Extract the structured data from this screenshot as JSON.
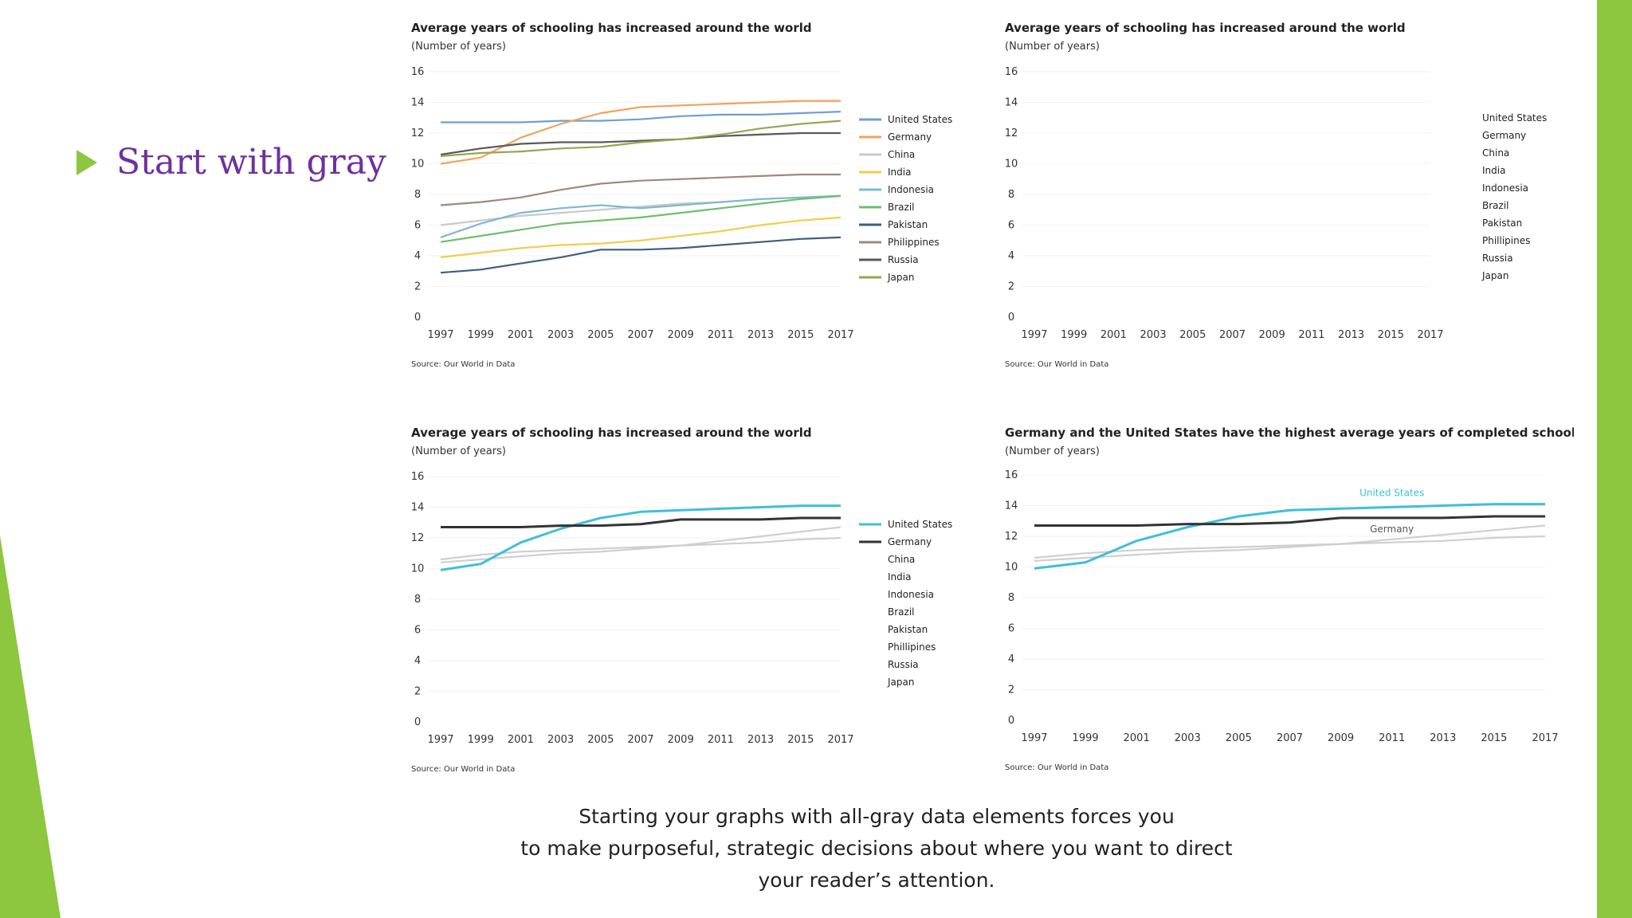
{
  "slide": {
    "bullet": "Start with gray",
    "caption_lines": [
      "Starting your graphs with all-gray data elements forces you",
      "to make purposeful, strategic decisions about where you want to direct",
      "your reader’s attention."
    ]
  },
  "colors": {
    "accent_green": "#8dc63f",
    "bullet_text": "#7030a0",
    "gray_series": "#cfcfcf",
    "highlight_us": "#3fbfd9",
    "highlight_germany": "#333333"
  },
  "chart_data": [
    {
      "type": "line",
      "title": "Average years of schooling has increased around the world",
      "subtitle": "(Number of years)",
      "source": "Source: Our World in Data",
      "x": [
        "1997",
        "1999",
        "2001",
        "2003",
        "2005",
        "2007",
        "2009",
        "2011",
        "2013",
        "2015",
        "2017"
      ],
      "yticks": [
        "0",
        "2",
        "4",
        "6",
        "8",
        "10",
        "12",
        "14",
        "16"
      ],
      "ylim": [
        0,
        16
      ],
      "legend_position": "right",
      "series": [
        {
          "name": "United States",
          "color": "#6f9fce",
          "values": [
            12.7,
            12.7,
            12.7,
            12.8,
            12.8,
            12.9,
            13.1,
            13.2,
            13.2,
            13.3,
            13.4
          ]
        },
        {
          "name": "Germany",
          "color": "#f0a35e",
          "values": [
            10.0,
            10.4,
            11.7,
            12.6,
            13.3,
            13.7,
            13.8,
            13.9,
            14.0,
            14.1,
            14.1
          ]
        },
        {
          "name": "China",
          "color": "#c9c9c9",
          "values": [
            6.0,
            6.3,
            6.6,
            6.8,
            7.0,
            7.2,
            7.4,
            7.5,
            7.7,
            7.8,
            7.9
          ]
        },
        {
          "name": "India",
          "color": "#f2cd4c",
          "values": [
            3.9,
            4.2,
            4.5,
            4.7,
            4.8,
            5.0,
            5.3,
            5.6,
            6.0,
            6.3,
            6.5
          ]
        },
        {
          "name": "Indonesia",
          "color": "#7fb8d1",
          "values": [
            5.2,
            6.1,
            6.8,
            7.1,
            7.3,
            7.1,
            7.3,
            7.5,
            7.7,
            7.8,
            7.9
          ]
        },
        {
          "name": "Brazil",
          "color": "#6cbf6c",
          "values": [
            4.9,
            5.3,
            5.7,
            6.1,
            6.3,
            6.5,
            6.8,
            7.1,
            7.4,
            7.7,
            7.9
          ]
        },
        {
          "name": "Pakistan",
          "color": "#3f5f7f",
          "values": [
            2.9,
            3.1,
            3.5,
            3.9,
            4.4,
            4.4,
            4.5,
            4.7,
            4.9,
            5.1,
            5.2
          ]
        },
        {
          "name": "Philippines",
          "color": "#a0887c",
          "values": [
            7.3,
            7.5,
            7.8,
            8.3,
            8.7,
            8.9,
            9.0,
            9.1,
            9.2,
            9.3,
            9.3
          ]
        },
        {
          "name": "Russia",
          "color": "#5a5a5a",
          "values": [
            10.6,
            11.0,
            11.3,
            11.4,
            11.4,
            11.5,
            11.6,
            11.8,
            11.9,
            12.0,
            12.0
          ]
        },
        {
          "name": "Japan",
          "color": "#94a850",
          "values": [
            10.5,
            10.7,
            10.8,
            11.0,
            11.1,
            11.4,
            11.6,
            11.9,
            12.3,
            12.6,
            12.8
          ]
        }
      ]
    },
    {
      "type": "line",
      "title": "Average years of schooling has increased around the world",
      "subtitle": "(Number of years)",
      "source": "Source: Our World in Data",
      "x": [
        "1997",
        "1999",
        "2001",
        "2003",
        "2005",
        "2007",
        "2009",
        "2011",
        "2013",
        "2015",
        "2017"
      ],
      "yticks": [
        "0",
        "2",
        "4",
        "6",
        "8",
        "10",
        "12",
        "14",
        "16"
      ],
      "ylim": [
        0,
        16
      ],
      "legend_position": "right",
      "legend_entries": [
        "United States",
        "Germany",
        "China",
        "India",
        "Indonesia",
        "Brazil",
        "Pakistan",
        "Phillipines",
        "Russia",
        "Japan"
      ],
      "series": []
    },
    {
      "type": "line",
      "title": "Average years of schooling has increased around the world",
      "subtitle": "(Number of years)",
      "source": "Source: Our World in Data",
      "x": [
        "1997",
        "1999",
        "2001",
        "2003",
        "2005",
        "2007",
        "2009",
        "2011",
        "2013",
        "2015",
        "2017"
      ],
      "yticks": [
        "0",
        "2",
        "4",
        "6",
        "8",
        "10",
        "12",
        "14",
        "16"
      ],
      "ylim": [
        0,
        16
      ],
      "legend_position": "right",
      "legend_entries": [
        "United States",
        "Germany",
        "China",
        "India",
        "Indonesia",
        "Brazil",
        "Pakistan",
        "Phillipines",
        "Russia",
        "Japan"
      ],
      "series": [
        {
          "name": "Japan",
          "color": "#cfcfcf",
          "values": [
            10.4,
            10.6,
            10.8,
            11.0,
            11.1,
            11.3,
            11.5,
            11.8,
            12.1,
            12.4,
            12.7
          ]
        },
        {
          "name": "Russia",
          "color": "#cfcfcf",
          "values": [
            10.6,
            10.9,
            11.1,
            11.2,
            11.3,
            11.4,
            11.5,
            11.6,
            11.7,
            11.9,
            12.0
          ]
        },
        {
          "name": "United States",
          "color": "#3fbfd9",
          "values": [
            9.9,
            10.3,
            11.7,
            12.6,
            13.3,
            13.7,
            13.8,
            13.9,
            14.0,
            14.1,
            14.1
          ]
        },
        {
          "name": "Germany",
          "color": "#333333",
          "values": [
            12.7,
            12.7,
            12.7,
            12.8,
            12.8,
            12.9,
            13.2,
            13.2,
            13.2,
            13.3,
            13.3
          ]
        }
      ]
    },
    {
      "type": "line",
      "title": "Germany and the United States have the highest average years of completed schooling",
      "subtitle": "(Number of years)",
      "source": "Source: Our World in Data",
      "x": [
        "1997",
        "1999",
        "2001",
        "2003",
        "2005",
        "2007",
        "2009",
        "2011",
        "2013",
        "2015",
        "2017"
      ],
      "yticks": [
        "0",
        "2",
        "4",
        "6",
        "8",
        "10",
        "12",
        "14",
        "16"
      ],
      "ylim": [
        0,
        16
      ],
      "annotations": {
        "us": "United States",
        "germany": "Germany"
      },
      "series": [
        {
          "name": "Japan",
          "color": "#cfcfcf",
          "values": [
            10.4,
            10.6,
            10.8,
            11.0,
            11.1,
            11.3,
            11.5,
            11.8,
            12.1,
            12.4,
            12.7
          ]
        },
        {
          "name": "Russia",
          "color": "#cfcfcf",
          "values": [
            10.6,
            10.9,
            11.1,
            11.2,
            11.3,
            11.4,
            11.5,
            11.6,
            11.7,
            11.9,
            12.0
          ]
        },
        {
          "name": "United States",
          "color": "#3fbfd9",
          "values": [
            9.9,
            10.3,
            11.7,
            12.6,
            13.3,
            13.7,
            13.8,
            13.9,
            14.0,
            14.1,
            14.1
          ]
        },
        {
          "name": "Germany",
          "color": "#333333",
          "values": [
            12.7,
            12.7,
            12.7,
            12.8,
            12.8,
            12.9,
            13.2,
            13.2,
            13.2,
            13.3,
            13.3
          ]
        }
      ]
    }
  ]
}
